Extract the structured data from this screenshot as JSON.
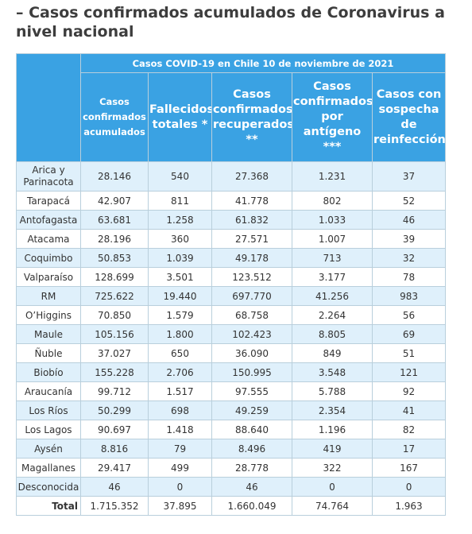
{
  "header": {
    "title": "– Casos confirmados acumulados de Coronavirus a nivel nacional"
  },
  "table": {
    "caption": "Casos COVID-19 en Chile 10 de noviembre de 2021",
    "columns": [
      "Casos confirmados acumulados",
      "Fallecidos totales *",
      "Casos confirmados recuperados **",
      "Casos confirmados por antígeno ***",
      "Casos con sospecha de reinfección"
    ],
    "rows": [
      [
        "Arica y Parinacota",
        "28.146",
        "540",
        "27.368",
        "1.231",
        "37"
      ],
      [
        "Tarapacá",
        "42.907",
        "811",
        "41.778",
        "802",
        "52"
      ],
      [
        "Antofagasta",
        "63.681",
        "1.258",
        "61.832",
        "1.033",
        "46"
      ],
      [
        "Atacama",
        "28.196",
        "360",
        "27.571",
        "1.007",
        "39"
      ],
      [
        "Coquimbo",
        "50.853",
        "1.039",
        "49.178",
        "713",
        "32"
      ],
      [
        "Valparaíso",
        "128.699",
        "3.501",
        "123.512",
        "3.177",
        "78"
      ],
      [
        "RM",
        "725.622",
        "19.440",
        "697.770",
        "41.256",
        "983"
      ],
      [
        "O’Higgins",
        "70.850",
        "1.579",
        "68.758",
        "2.264",
        "56"
      ],
      [
        "Maule",
        "105.156",
        "1.800",
        "102.423",
        "8.805",
        "69"
      ],
      [
        "Ñuble",
        "37.027",
        "650",
        "36.090",
        "849",
        "51"
      ],
      [
        "Biobío",
        "155.228",
        "2.706",
        "150.995",
        "3.548",
        "121"
      ],
      [
        "Araucanía",
        "99.712",
        "1.517",
        "97.555",
        "5.788",
        "92"
      ],
      [
        "Los Ríos",
        "50.299",
        "698",
        "49.259",
        "2.354",
        "41"
      ],
      [
        "Los Lagos",
        "90.697",
        "1.418",
        "88.640",
        "1.196",
        "82"
      ],
      [
        "Aysén",
        "8.816",
        "79",
        "8.496",
        "419",
        "17"
      ],
      [
        "Magallanes",
        "29.417",
        "499",
        "28.778",
        "322",
        "167"
      ],
      [
        "Desconocida",
        "46",
        "0",
        "46",
        "0",
        "0"
      ]
    ],
    "total": [
      "Total",
      "1.715.352",
      "37.895",
      "1.660.049",
      "74.764",
      "1.963"
    ]
  }
}
